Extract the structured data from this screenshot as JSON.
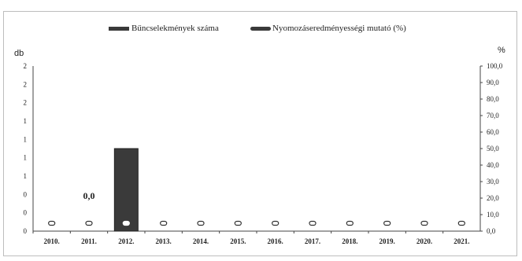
{
  "chart_data": {
    "type": "bar",
    "categories": [
      "2010.",
      "2011.",
      "2012.",
      "2013.",
      "2014.",
      "2015.",
      "2016.",
      "2017.",
      "2018.",
      "2019.",
      "2020.",
      "2021."
    ],
    "series": [
      {
        "name": "Bűncselekmények száma",
        "kind": "bar",
        "axis": "left",
        "color": "#3a3a3a",
        "values": [
          0,
          0,
          1,
          0,
          0,
          0,
          0,
          0,
          0,
          0,
          0,
          0
        ]
      },
      {
        "name": "Nyomozáseredményességi mutató (%)",
        "kind": "line",
        "axis": "right",
        "color": "#3a3a3a",
        "values": [
          0,
          0,
          0,
          0,
          0,
          0,
          0,
          0,
          0,
          0,
          0,
          0
        ]
      }
    ],
    "ylabel": "db",
    "y2label": "%",
    "yticks": [
      "0",
      "0",
      "0",
      "1",
      "1",
      "1",
      "1",
      "2",
      "2",
      "2"
    ],
    "ylim": [
      0,
      2
    ],
    "y2ticks": [
      "0,0",
      "10,0",
      "20,0",
      "30,0",
      "40,0",
      "50,0",
      "60,0",
      "70,0",
      "80,0",
      "90,0",
      "100,0"
    ],
    "y2lim": [
      0,
      100
    ],
    "data_labels": [
      {
        "category": "2011.",
        "text": "0,0"
      }
    ],
    "grid": false,
    "legend": "top"
  }
}
